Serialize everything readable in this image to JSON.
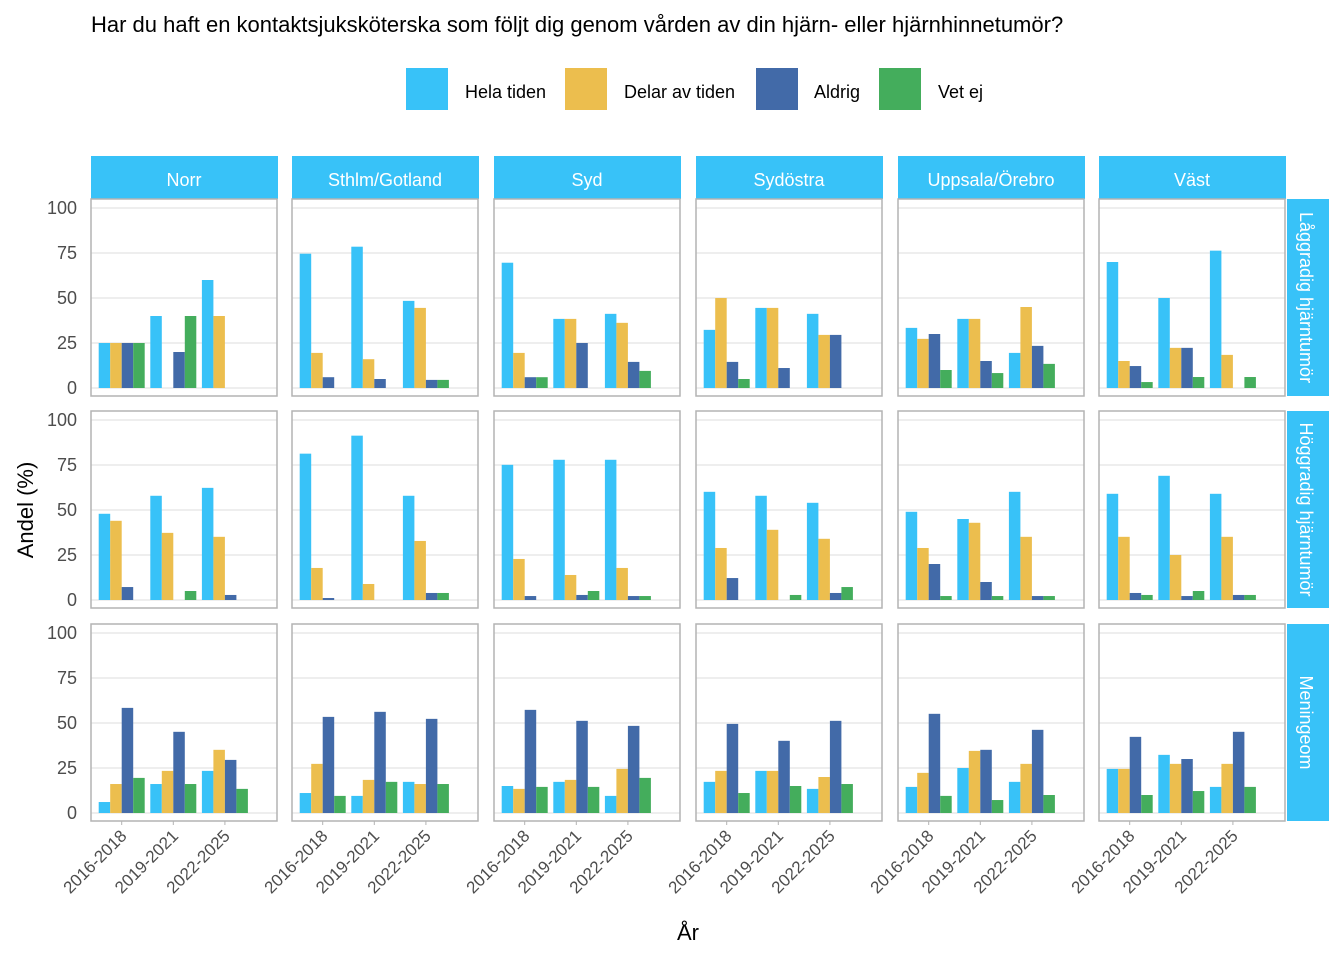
{
  "chart_data": {
    "type": "bar",
    "title": "Har du haft en kontaktsjuksköterska som följt dig genom vården av din hjärn- eller hjärnhinnetumör?",
    "xlabel": "År",
    "ylabel": "Andel (%)",
    "ylim": [
      0,
      100
    ],
    "yticks": [
      0,
      25,
      50,
      75,
      100
    ],
    "grid": true,
    "legend_position": "top",
    "categories": [
      "2016-2018",
      "2019-2021",
      "2022-2025"
    ],
    "columns": [
      "Norr",
      "Sthlm/Gotland",
      "Syd",
      "Sydöstra",
      "Uppsala/Örebro",
      "Väst"
    ],
    "rows": [
      "Låggradig hjärntumör",
      "Höggradig hjärntumör",
      "Meningeom"
    ],
    "series": [
      {
        "name": "Hela tiden",
        "color": "#38C2F8"
      },
      {
        "name": "Delar av tiden",
        "color": "#ECBE4E"
      },
      {
        "name": "Aldrig",
        "color": "#426AA8"
      },
      {
        "name": "Vet ej",
        "color": "#44AD5C"
      }
    ],
    "values": [
      [
        [
          [
            25,
            40,
            60
          ],
          [
            25,
            0,
            40
          ],
          [
            25,
            20,
            0
          ],
          [
            25,
            40,
            0
          ]
        ],
        [
          [
            74.6,
            78.5,
            48.4
          ],
          [
            19.5,
            16,
            44.5
          ],
          [
            6,
            5,
            4.5
          ],
          [
            0,
            0,
            4.5
          ]
        ],
        [
          [
            69.6,
            38.4,
            41.2
          ],
          [
            19.5,
            38.4,
            36.2
          ],
          [
            6,
            25,
            14.5
          ],
          [
            6,
            0,
            9.5
          ]
        ],
        [
          [
            32.3,
            44.5,
            41.2
          ],
          [
            50,
            44.5,
            29.5
          ],
          [
            14.5,
            11.1,
            29.5
          ],
          [
            5,
            0,
            0
          ]
        ],
        [
          [
            33.4,
            38.4,
            19.5
          ],
          [
            27.3,
            38.4,
            45
          ],
          [
            30,
            15,
            23.4
          ],
          [
            10,
            8.3,
            13.4
          ]
        ],
        [
          [
            70,
            50,
            76.3
          ],
          [
            15,
            22.3,
            18.4
          ],
          [
            12.2,
            22.3,
            0
          ],
          [
            3.3,
            6.1,
            6.1
          ]
        ]
      ],
      [
        [
          [
            47.9,
            57.9,
            62.3
          ],
          [
            44,
            37.3,
            35.1
          ],
          [
            7.2,
            0,
            2.8
          ],
          [
            0,
            5,
            0
          ]
        ],
        [
          [
            81.3,
            91.3,
            57.9
          ],
          [
            17.8,
            8.9,
            32.8
          ],
          [
            1.1,
            0,
            3.9
          ],
          [
            0,
            0,
            3.9
          ]
        ],
        [
          [
            75.1,
            77.9,
            77.9
          ],
          [
            22.8,
            13.9,
            17.8
          ],
          [
            2.2,
            2.8,
            2.2
          ],
          [
            0,
            5,
            2.2
          ]
        ],
        [
          [
            60.1,
            57.9,
            54
          ],
          [
            28.9,
            39,
            34
          ],
          [
            12.2,
            0,
            3.9
          ],
          [
            0,
            2.8,
            7.2
          ]
        ],
        [
          [
            49,
            45,
            60.1
          ],
          [
            28.9,
            42.9,
            35.1
          ],
          [
            20,
            10,
            2.2
          ],
          [
            2.2,
            2.2,
            2.2
          ]
        ],
        [
          [
            59,
            69,
            59
          ],
          [
            35.1,
            25,
            35.1
          ],
          [
            3.9,
            2.2,
            2.8
          ],
          [
            2.8,
            5,
            2.8
          ]
        ]
      ],
      [
        [
          [
            6.1,
            16.1,
            23.4
          ],
          [
            16.1,
            23.4,
            35.1
          ],
          [
            58.4,
            45.1,
            29.5
          ],
          [
            19.5,
            16.1,
            13.4
          ]
        ],
        [
          [
            11.1,
            9.5,
            17.3
          ],
          [
            27.3,
            18.4,
            16.1
          ],
          [
            53.4,
            56.2,
            52.3
          ],
          [
            9.5,
            17.3,
            16.1
          ]
        ],
        [
          [
            15,
            17.3,
            9.5
          ],
          [
            13.4,
            18.4,
            24.5
          ],
          [
            57.3,
            51.2,
            48.4
          ],
          [
            14.5,
            14.5,
            19.5
          ]
        ],
        [
          [
            17.3,
            23.4,
            13.4
          ],
          [
            23.4,
            23.4,
            20
          ],
          [
            49.5,
            40.1,
            51.2
          ],
          [
            11.1,
            15,
            16.1
          ]
        ],
        [
          [
            14.5,
            25,
            17.3
          ],
          [
            22.3,
            34.5,
            27.3
          ],
          [
            55.1,
            35.1,
            46.2
          ],
          [
            9.5,
            7.2,
            10
          ]
        ],
        [
          [
            24.5,
            32.3,
            14.5
          ],
          [
            24.5,
            27.3,
            27.3
          ],
          [
            42.3,
            30,
            45.1
          ],
          [
            10,
            12.2,
            14.5
          ]
        ]
      ]
    ],
    "strip_color": "#38C2F8"
  }
}
